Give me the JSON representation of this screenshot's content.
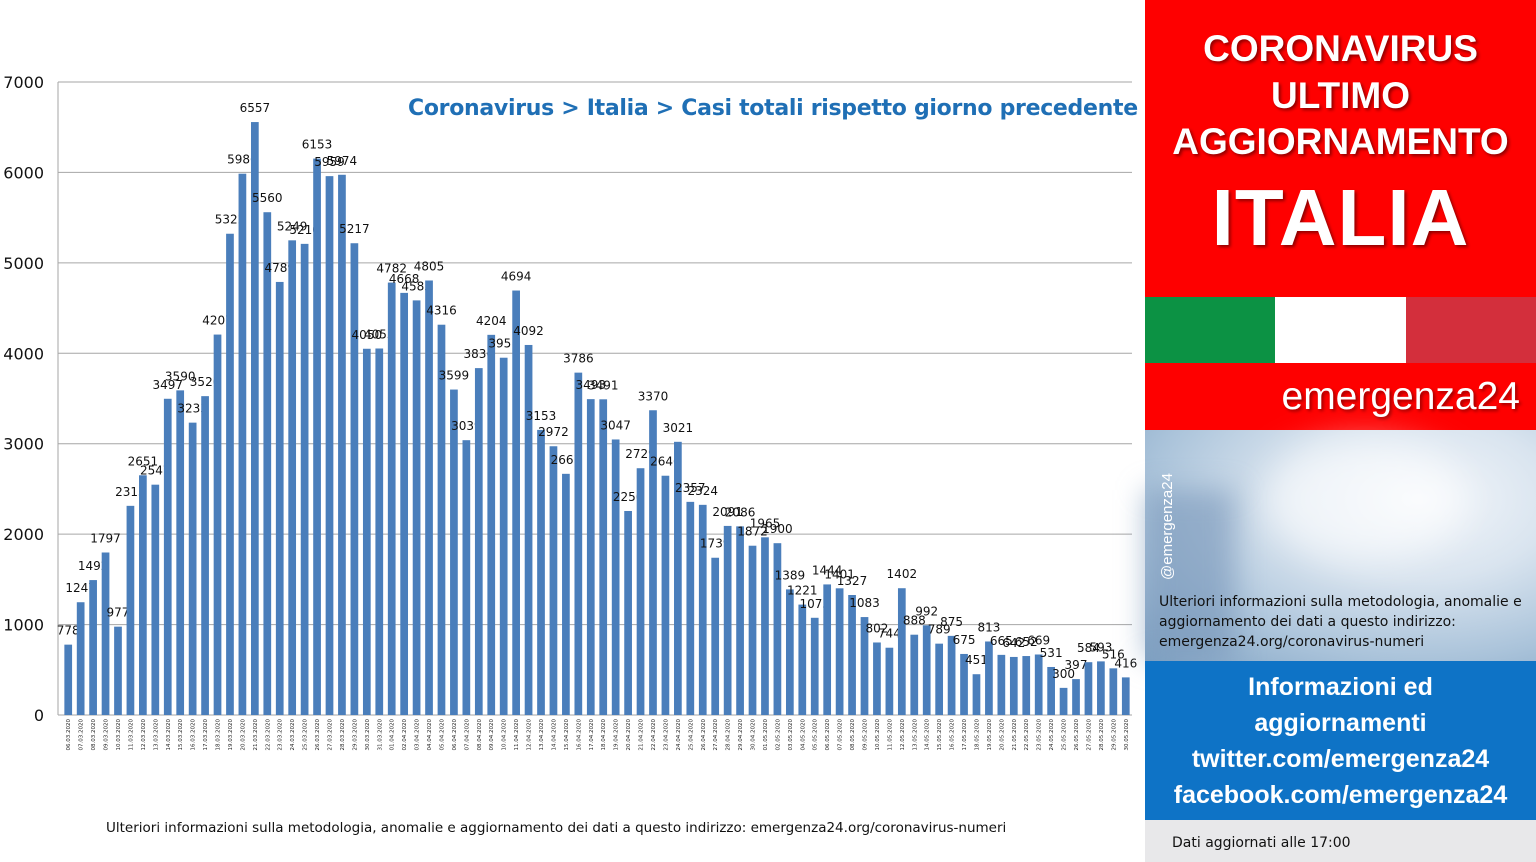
{
  "chart_data": {
    "type": "bar",
    "title": "Coronavirus > Italia > Casi totali rispetto giorno precedente",
    "ylim": [
      0,
      7000
    ],
    "yticks": [
      0,
      1000,
      2000,
      3000,
      4000,
      5000,
      6000,
      7000
    ],
    "grid": true,
    "bar_color": "#4a7ebb",
    "categories": [
      "06.03.2020",
      "07.03.2020",
      "08.03.2020",
      "09.03.2020",
      "10.03.2020",
      "11.03.2020",
      "12.03.2020",
      "13.03.2020",
      "14.03.2020",
      "15.03.2020",
      "16.03.2020",
      "17.03.2020",
      "18.03.2020",
      "19.03.2020",
      "20.03.2020",
      "21.03.2020",
      "22.03.2020",
      "23.03.2020",
      "24.03.2020",
      "25.03.2020",
      "26.03.2020",
      "27.03.2020",
      "28.03.2020",
      "29.03.2020",
      "30.03.2020",
      "31.03.2020",
      "01.04.2020",
      "02.04.2020",
      "03.04.2020",
      "04.04.2020",
      "05.04.2020",
      "06.04.2020",
      "07.04.2020",
      "08.04.2020",
      "09.04.2020",
      "10.04.2020",
      "11.04.2020",
      "12.04.2020",
      "13.04.2020",
      "14.04.2020",
      "15.04.2020",
      "16.04.2020",
      "17.04.2020",
      "18.04.2020",
      "19.04.2020",
      "20.04.2020",
      "21.04.2020",
      "22.04.2020",
      "23.04.2020",
      "24.04.2020",
      "25.04.2020",
      "26.04.2020",
      "27.04.2020",
      "28.04.2020",
      "29.04.2020",
      "30.04.2020",
      "01.05.2020",
      "02.05.2020",
      "03.05.2020",
      "04.05.2020",
      "05.05.2020",
      "06.05.2020",
      "07.05.2020",
      "08.05.2020",
      "09.05.2020",
      "10.05.2020",
      "11.05.2020",
      "12.05.2020",
      "13.05.2020",
      "14.05.2020",
      "15.05.2020",
      "16.05.2020",
      "17.05.2020",
      "18.05.2020",
      "19.05.2020",
      "20.05.2020",
      "21.05.2020",
      "22.05.2020",
      "23.05.2020",
      "24.05.2020",
      "25.05.2020",
      "26.05.2020",
      "27.05.2020",
      "28.05.2020",
      "29.05.2020",
      "30.05.2020"
    ],
    "values": [
      778,
      1247,
      1492,
      1797,
      977,
      2313,
      2651,
      2547,
      3497,
      3590,
      3233,
      3526,
      4207,
      5322,
      5986,
      6557,
      5560,
      4789,
      5249,
      5210,
      6153,
      5959,
      5974,
      5217,
      4050,
      4053,
      4782,
      4668,
      4585,
      4805,
      4316,
      3599,
      3039,
      3836,
      4204,
      3951,
      4694,
      4092,
      3153,
      2972,
      2667,
      3786,
      3493,
      3491,
      3047,
      2256,
      2729,
      3370,
      2646,
      3021,
      2357,
      2324,
      1739,
      2091,
      2086,
      1872,
      1965,
      1900,
      1389,
      1221,
      1075,
      1444,
      1401,
      1327,
      1083,
      802,
      744,
      1402,
      888,
      992,
      789,
      875,
      675,
      451,
      813,
      665,
      642,
      652,
      669,
      531,
      300,
      397,
      584,
      593,
      516,
      416
    ]
  },
  "footnote": "Ulteriori informazioni sulla metodologia, anomalie e aggiornamento dei dati a questo indirizzo: emergenza24.org/coronavirus-numeri",
  "panel": {
    "header_lines": [
      "CORONAVIRUS",
      "ULTIMO",
      "AGGIORNAMENTO",
      "ITALIA"
    ],
    "brand": "emergenza24",
    "handle": "@emergenza24",
    "info_note": "Ulteriori informazioni sulla metodologia, anomalie e aggiornamento dei dati a questo indirizzo: emergenza24.org/coronavirus-numeri",
    "blue_lines": [
      "Informazioni ed",
      "aggiornamenti",
      "twitter.com/emergenza24",
      "facebook.com/emergenza24"
    ],
    "updated": "Dati aggiornati alle 17:00",
    "colors": {
      "red": "#fe0000",
      "blue": "#0e73c6",
      "flag_green": "#0c9244",
      "flag_red": "#d32f3c"
    }
  }
}
